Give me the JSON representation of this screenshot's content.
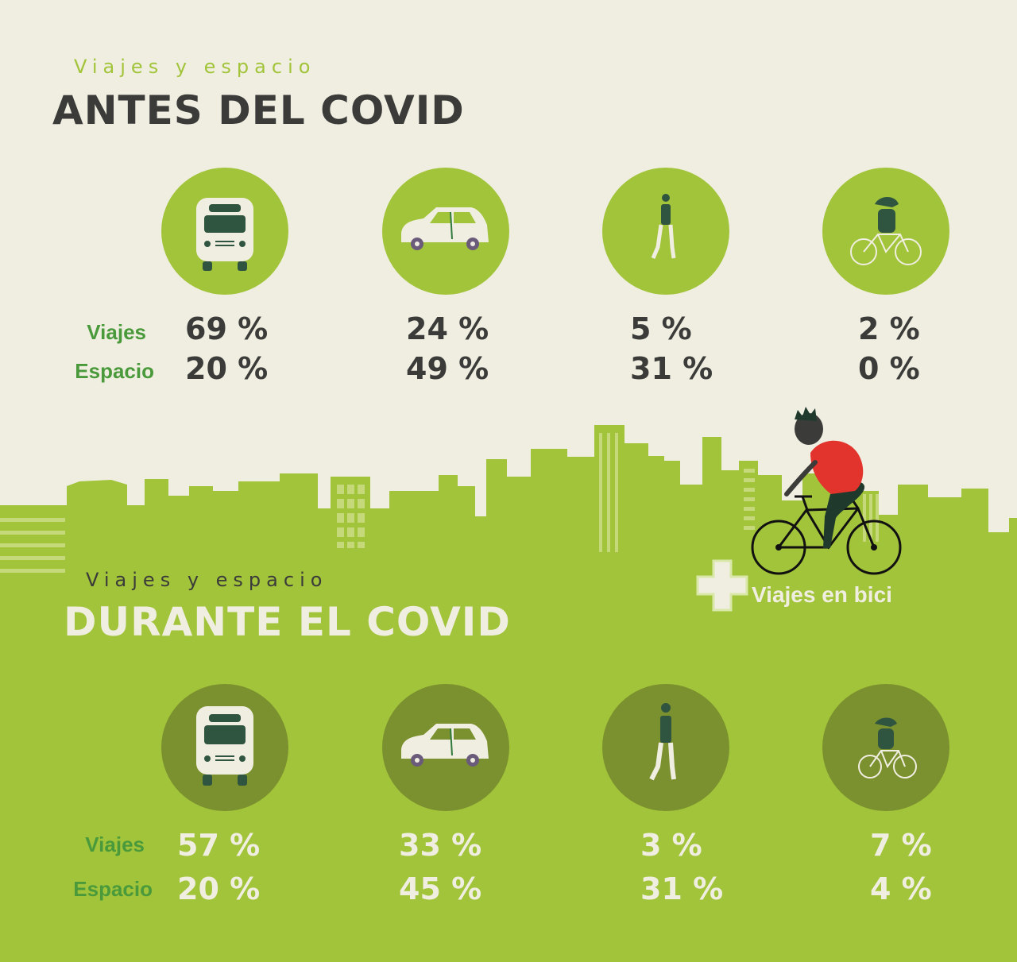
{
  "antes": {
    "kicker": "Viajes y espacio",
    "title": "ANTES DEL COVID",
    "row_labels": {
      "viajes": "Viajes",
      "espacio": "Espacio"
    },
    "modes": [
      {
        "icon": "bus-icon",
        "viajes": "69 %",
        "espacio": "20 %"
      },
      {
        "icon": "car-icon",
        "viajes": "24 %",
        "espacio": "49 %"
      },
      {
        "icon": "pedestrian-icon",
        "viajes": "5 %",
        "espacio": "31 %"
      },
      {
        "icon": "cyclist-icon",
        "viajes": "2 %",
        "espacio": "0 %"
      }
    ]
  },
  "durante": {
    "kicker": "Viajes y espacio",
    "title": "DURANTE EL COVID",
    "row_labels": {
      "viajes": "Viajes",
      "espacio": "Espacio"
    },
    "modes": [
      {
        "icon": "bus-icon",
        "viajes": "57 %",
        "espacio": "20 %"
      },
      {
        "icon": "car-icon",
        "viajes": "33 %",
        "espacio": "45 %"
      },
      {
        "icon": "pedestrian-icon",
        "viajes": "3 %",
        "espacio": "31 %"
      },
      {
        "icon": "cyclist-icon",
        "viajes": "7 %",
        "espacio": "4 %"
      }
    ]
  },
  "bici_callout": {
    "label": "Viajes en bici",
    "icon": "plus-icon"
  },
  "colors": {
    "background": "#f0eee0",
    "green": "#a2c43a",
    "dark_green": "#7b902e",
    "text_dark": "#3b3b3a",
    "label_green": "#4a9a3c",
    "accent_red": "#e2332d"
  }
}
